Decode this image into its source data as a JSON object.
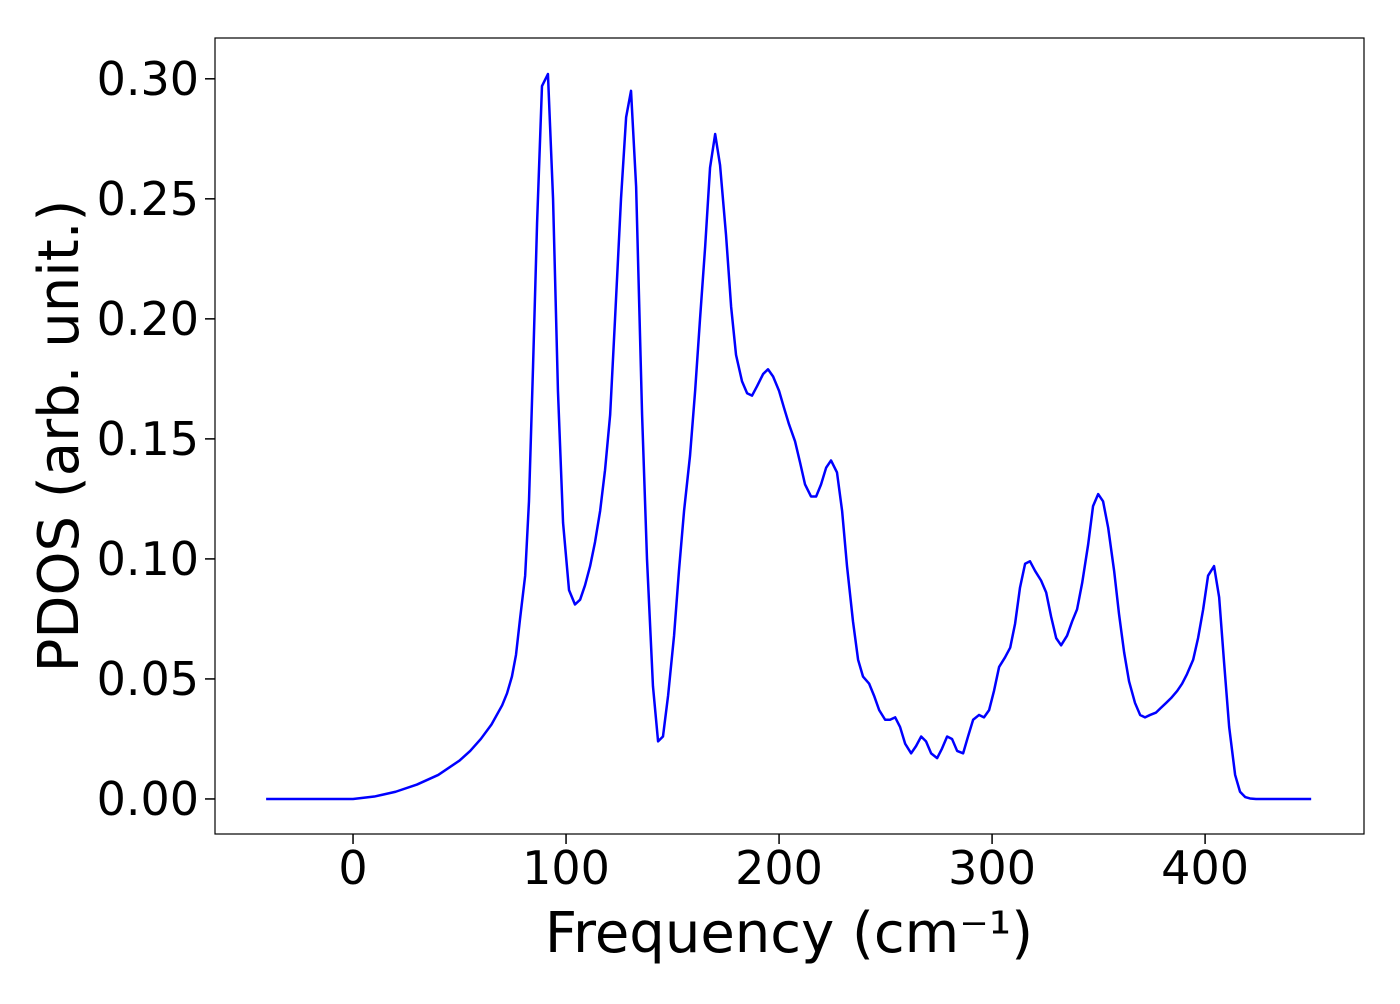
{
  "chart_data": {
    "type": "line",
    "xlabel": "Frequency (cm⁻¹)",
    "ylabel": "PDOS (arb. unit.)",
    "xlim": [
      -64.8,
      474.6
    ],
    "ylim": [
      -0.0146,
      0.317
    ],
    "xticks": [
      0,
      100,
      200,
      300,
      400
    ],
    "yticks": [
      {
        "value": 0,
        "label": "0.00"
      },
      0.05,
      {
        "value": 0.1,
        "label": "0.10"
      },
      0.15,
      {
        "value": 0.2,
        "label": "0.20"
      },
      0.25,
      {
        "value": 0.3,
        "label": "0.30"
      }
    ],
    "series": [
      {
        "color": "#0000ff",
        "x": [
          -40.8,
          0,
          10,
          20,
          30,
          40,
          50,
          55,
          60,
          65,
          70,
          72.3,
          74.6,
          76.5,
          78.4,
          80.8,
          82.6,
          84.5,
          86.4,
          88.7,
          91.5,
          93.9,
          96.2,
          98.6,
          101.4,
          104.2,
          106.6,
          108.9,
          111.3,
          113.6,
          116,
          118.3,
          120.7,
          123,
          125.8,
          128.2,
          130.5,
          132.9,
          135.7,
          138,
          140.8,
          143.2,
          145.5,
          147.9,
          150.7,
          153,
          155.4,
          158.2,
          160.6,
          162.9,
          165.3,
          167.6,
          170,
          172.3,
          175.1,
          177.5,
          179.8,
          182.6,
          185,
          187.3,
          189.7,
          192.5,
          194.8,
          197.2,
          200,
          202.3,
          204.7,
          207.5,
          209.9,
          212.2,
          215,
          217.4,
          219.7,
          222.1,
          224.4,
          227.2,
          229.6,
          231.9,
          234.7,
          237.1,
          239.4,
          242.3,
          244.6,
          247,
          249.8,
          252.1,
          254.5,
          256.8,
          259.2,
          262,
          264.3,
          266.7,
          269,
          271.4,
          274.2,
          276.5,
          278.9,
          281.2,
          283.6,
          286.4,
          288.7,
          291.1,
          293.9,
          296.2,
          298.6,
          300.9,
          303.3,
          306.1,
          308.5,
          310.8,
          313.1,
          315.5,
          317.8,
          320.2,
          323,
          325.4,
          327.7,
          330.1,
          332.4,
          335.2,
          337.6,
          339.9,
          342.3,
          345.1,
          347.4,
          349.8,
          352.1,
          354.5,
          357.3,
          359.6,
          362,
          364.3,
          367.1,
          369.5,
          371.8,
          374.2,
          377,
          379.3,
          381.7,
          384,
          386.9,
          389.2,
          391.5,
          394.4,
          396.7,
          399.1,
          401.4,
          404.2,
          406.6,
          408.9,
          411.3,
          414.1,
          416.4,
          418.8,
          421.1,
          423.9,
          449.8
        ],
        "values": [
          0,
          0,
          0.001,
          0.003,
          0.006,
          0.01,
          0.016,
          0.02,
          0.025,
          0.031,
          0.039,
          0.044,
          0.051,
          0.06,
          0.075,
          0.093,
          0.124,
          0.18,
          0.24,
          0.297,
          0.302,
          0.25,
          0.17,
          0.115,
          0.087,
          0.081,
          0.083,
          0.089,
          0.097,
          0.107,
          0.12,
          0.137,
          0.16,
          0.2,
          0.25,
          0.284,
          0.295,
          0.255,
          0.16,
          0.1,
          0.047,
          0.024,
          0.026,
          0.043,
          0.068,
          0.095,
          0.12,
          0.143,
          0.17,
          0.2,
          0.23,
          0.263,
          0.277,
          0.264,
          0.235,
          0.205,
          0.185,
          0.174,
          0.169,
          0.168,
          0.172,
          0.177,
          0.179,
          0.176,
          0.17,
          0.163,
          0.156,
          0.149,
          0.14,
          0.131,
          0.126,
          0.126,
          0.131,
          0.138,
          0.141,
          0.136,
          0.12,
          0.097,
          0.074,
          0.058,
          0.051,
          0.048,
          0.043,
          0.037,
          0.033,
          0.033,
          0.034,
          0.03,
          0.023,
          0.019,
          0.022,
          0.026,
          0.024,
          0.019,
          0.017,
          0.021,
          0.026,
          0.025,
          0.02,
          0.019,
          0.026,
          0.033,
          0.035,
          0.034,
          0.037,
          0.045,
          0.055,
          0.059,
          0.063,
          0.073,
          0.088,
          0.098,
          0.099,
          0.095,
          0.091,
          0.086,
          0.076,
          0.067,
          0.064,
          0.068,
          0.074,
          0.079,
          0.09,
          0.106,
          0.122,
          0.127,
          0.124,
          0.113,
          0.095,
          0.077,
          0.061,
          0.049,
          0.04,
          0.035,
          0.034,
          0.035,
          0.036,
          0.038,
          0.04,
          0.042,
          0.045,
          0.048,
          0.052,
          0.058,
          0.067,
          0.079,
          0.093,
          0.097,
          0.084,
          0.057,
          0.03,
          0.01,
          0.003,
          0.0008,
          0.0002,
          0,
          0
        ]
      }
    ]
  }
}
